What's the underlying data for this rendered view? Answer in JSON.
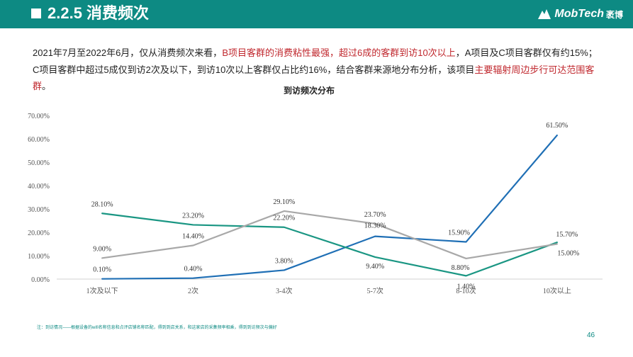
{
  "header": {
    "title": "2.2.5 消费频次",
    "brand_name": "MobTech",
    "brand_cn": "袤博",
    "brand_icon": "mobtech-logo-icon",
    "color": "#0d8a83"
  },
  "summary": {
    "part1": "2021年7月至2022年6月，仅从消费频次来看，",
    "part2": "B项目客群的消费粘性最强，超过6成的客群到访10次以上",
    "part3": "，A项目及C项目客群仅有约15%；C项目客群中超过5成仅到访2次及以下，到访10次以上客群仅占比约16%，结合客群来源地分布分析，该项目",
    "part4": "主要辐射周边步行可达范围客群",
    "part5": "。",
    "highlight_color": "#c0282e"
  },
  "chart_data": {
    "type": "line",
    "title": "到访频次分布",
    "categories": [
      "1次及以下",
      "2次",
      "3-4次",
      "5-7次",
      "8-10次",
      "10次以上"
    ],
    "series": [
      {
        "color": "#1f6fb5",
        "values": [
          0.1,
          0.4,
          3.8,
          18.3,
          15.9,
          61.5
        ],
        "labels": [
          "0.10%",
          "0.40%",
          "3.80%",
          "18.30%",
          "15.90%",
          "61.50%"
        ]
      },
      {
        "color": "#1a9683",
        "values": [
          28.1,
          23.2,
          22.2,
          9.4,
          1.4,
          15.7
        ],
        "labels": [
          "28.10%",
          "23.20%",
          "22.20%",
          "9.40%",
          "1.40%",
          "15.70%"
        ]
      },
      {
        "color": "#a8a8a8",
        "values": [
          9.0,
          14.4,
          29.1,
          23.7,
          8.8,
          15.0
        ],
        "labels": [
          "9.00%",
          "14.40%",
          "29.10%",
          "23.70%",
          "8.80%",
          "15.00%"
        ]
      }
    ],
    "yticks": [
      "0.00%",
      "10.00%",
      "20.00%",
      "30.00%",
      "40.00%",
      "50.00%",
      "60.00%",
      "70.00%"
    ],
    "ylim": [
      0,
      70
    ],
    "grid": false,
    "legend": "none"
  },
  "footnote": "注：到访情况——根据设备的wifi名称信息和点评店铺名称匹配，得到到店关系，和这家店的采集频率相乘，得到到访频次与偏好",
  "page_number": "46"
}
